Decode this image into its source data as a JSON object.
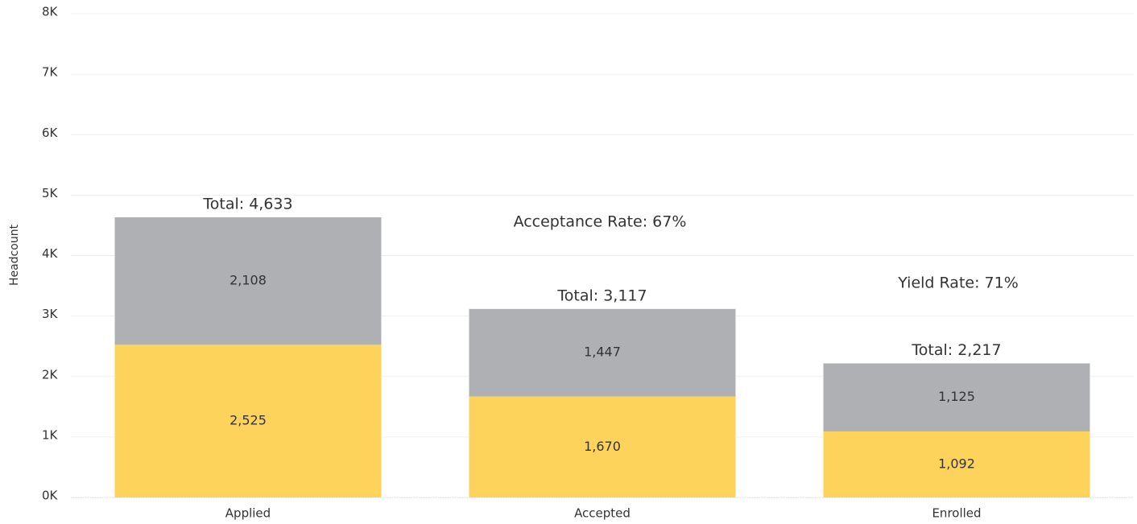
{
  "chart_data": {
    "type": "stacked_bar",
    "y_label": "Headcount",
    "categories": [
      "Applied",
      "Accepted",
      "Enrolled"
    ],
    "series": [
      {
        "color": "#fdd35c",
        "values": [
          2525,
          1670,
          1092
        ],
        "value_labels": [
          "2,525",
          "1,670",
          "1,092"
        ]
      },
      {
        "color": "#aeb0b4",
        "values": [
          2108,
          1447,
          1125
        ],
        "value_labels": [
          "2,108",
          "1,447",
          "1,125"
        ]
      }
    ],
    "totals": [
      {
        "value": 4633,
        "label": "Total:  4,633"
      },
      {
        "value": 3117,
        "label": "Total:  3,117"
      },
      {
        "value": 2217,
        "label": "Total:  2,217"
      }
    ],
    "annotations": [
      {
        "text": "Acceptance Rate:  67%"
      },
      {
        "text": "Yield Rate:  71%"
      }
    ],
    "ylim": [
      0,
      8000
    ],
    "yticks": [
      {
        "value": 0,
        "label": "0K"
      },
      {
        "value": 1000,
        "label": "1K"
      },
      {
        "value": 2000,
        "label": "2K"
      },
      {
        "value": 3000,
        "label": "3K"
      },
      {
        "value": 4000,
        "label": "4K"
      },
      {
        "value": 5000,
        "label": "5K"
      },
      {
        "value": 6000,
        "label": "6K"
      },
      {
        "value": 7000,
        "label": "7K"
      },
      {
        "value": 8000,
        "label": "8K"
      }
    ],
    "grid": true
  }
}
